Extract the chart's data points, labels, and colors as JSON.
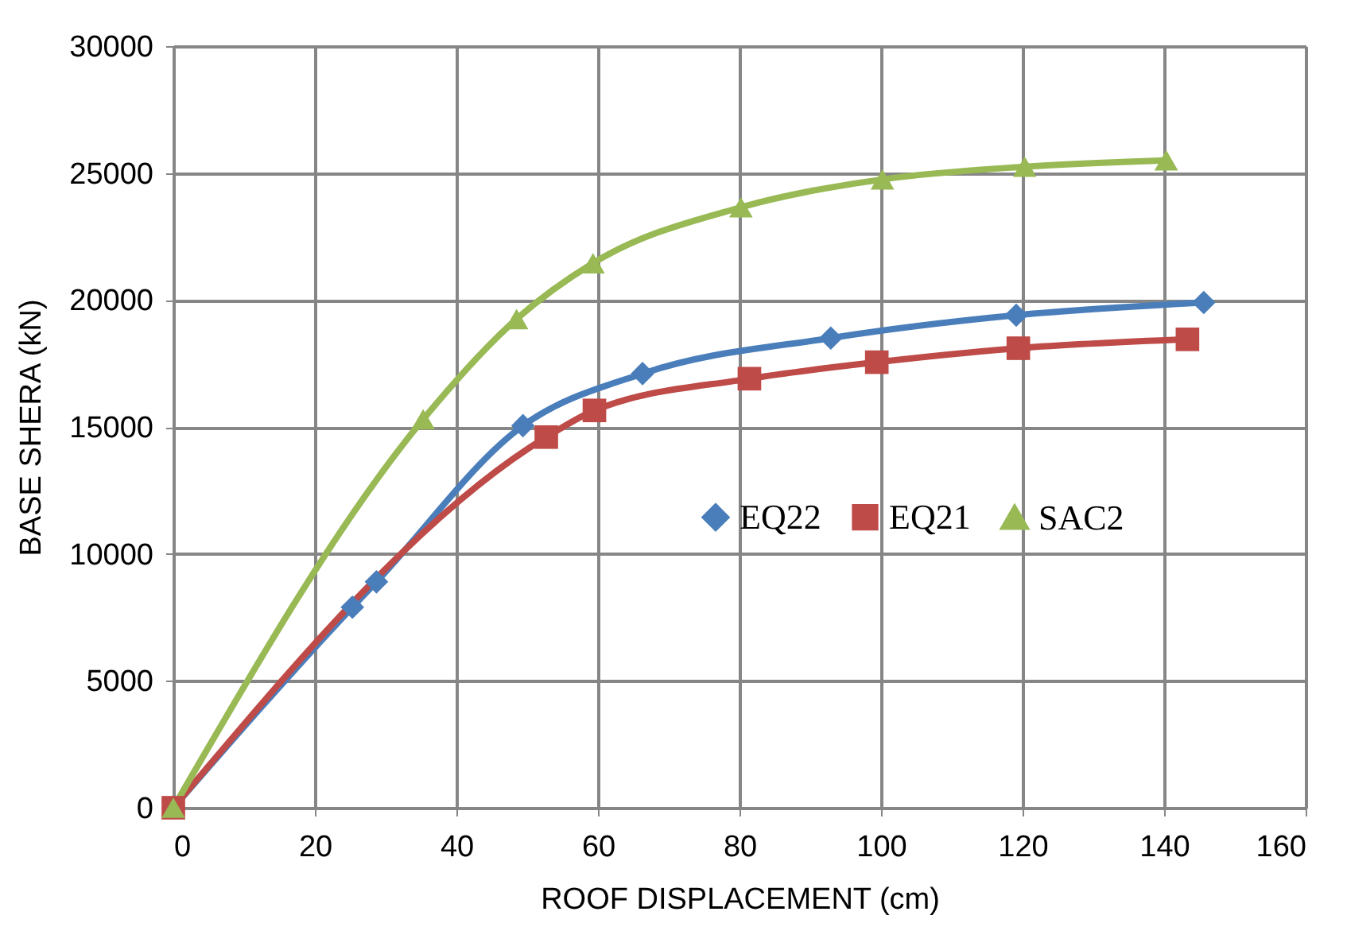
{
  "chart_data": {
    "type": "line",
    "xlabel": "ROOF DISPLACEMENT (cm)",
    "ylabel": "BASE SHERA  (kN)",
    "xlim": [
      0,
      160
    ],
    "xticks": [
      0,
      20,
      40,
      60,
      80,
      100,
      120,
      140,
      160
    ],
    "ylim": [
      0,
      30000
    ],
    "yticks": [
      0,
      5000,
      10000,
      15000,
      20000,
      25000,
      30000
    ],
    "grid": true,
    "legend": "right",
    "line_style": "solid",
    "series": [
      {
        "name": "EQ22",
        "color": "#4a7ebb",
        "marker": "diamond",
        "x": [
          0,
          25.3,
          28.7,
          49.4,
          66.3,
          92.9,
          119.1,
          145.6
        ],
        "values": [
          0,
          7900,
          8900,
          15050,
          17100,
          18500,
          19400,
          19900
        ]
      },
      {
        "name": "EQ21",
        "color": "#be4b48",
        "marker": "square",
        "x": [
          0,
          52.7,
          59.5,
          81.4,
          99.4,
          119.4,
          143.3
        ],
        "values": [
          0,
          14600,
          15650,
          16900,
          17550,
          18100,
          18450
        ]
      },
      {
        "name": "SAC2",
        "color": "#98b954",
        "marker": "triangle",
        "x": [
          0,
          35.3,
          48.5,
          59.3,
          80.2,
          100.2,
          120.3,
          140.3
        ],
        "values": [
          0,
          15300,
          19250,
          21450,
          23650,
          24750,
          25250,
          25500
        ]
      }
    ]
  }
}
